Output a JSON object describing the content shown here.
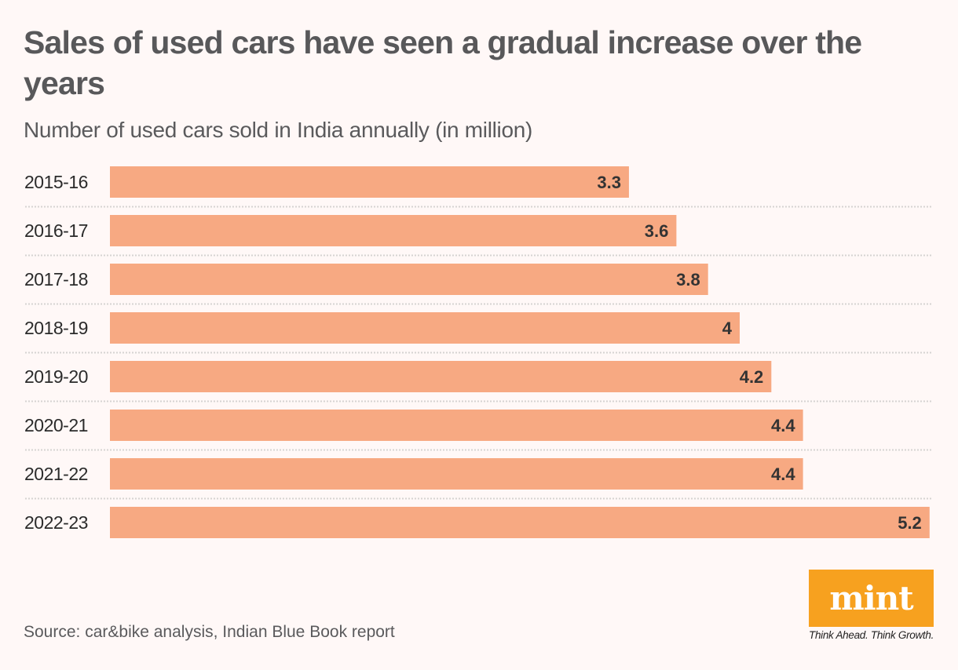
{
  "chart_data": {
    "type": "bar",
    "orientation": "horizontal",
    "title": "Sales of used cars have seen a gradual increase over the years",
    "subtitle": "Number of used cars sold in India annually (in million)",
    "categories": [
      "2015-16",
      "2016-17",
      "2017-18",
      "2018-19",
      "2019-20",
      "2020-21",
      "2021-22",
      "2022-23"
    ],
    "values": [
      3.3,
      3.6,
      3.8,
      4,
      4.2,
      4.4,
      4.4,
      5.2
    ],
    "value_labels": [
      "3.3",
      "3.6",
      "3.8",
      "4",
      "4.2",
      "4.4",
      "4.4",
      "5.2"
    ],
    "xlabel": "",
    "ylabel": "",
    "xlim": [
      0,
      5.2
    ],
    "grid": "dotted separators between rows",
    "legend": "none",
    "bar_color": "#f7a982"
  },
  "source": "Source: car&bike analysis, Indian Blue Book report",
  "branding": {
    "logo": "mint",
    "tagline": "Think Ahead. Think Growth.",
    "logo_color": "#f7a11f"
  }
}
